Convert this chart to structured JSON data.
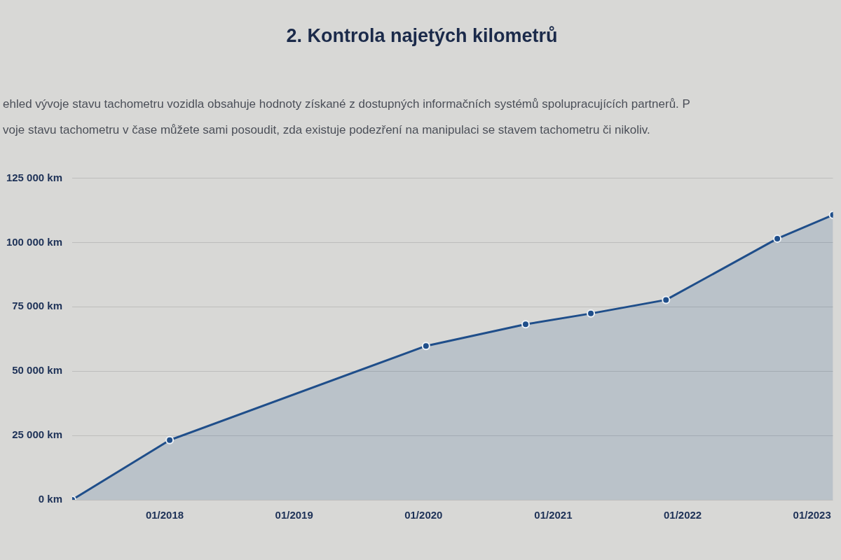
{
  "chart_data": {
    "type": "area",
    "title": "2. Kontrola najetých kilometrů",
    "subtitle": "ehled vývoje stavu tachometru vozidla obsahuje hodnoty získané z dostupných informačních systémů spolupracujících partnerů. P\nvoje stavu tachometru v čase můžete sami posoudit, zda existuje podezření na manipulaci se stavem tachometru či nikoliv.",
    "x": [
      "2017-04-15",
      "2018-01-15",
      "2020-01-08",
      "2020-10-15",
      "2021-04-17",
      "2021-11-15",
      "2022-09-25",
      "2023-03-01"
    ],
    "values": [
      0,
      23200,
      59800,
      68200,
      72400,
      77700,
      101500,
      110700
    ],
    "color": "#1f4e8a",
    "marker": "circle",
    "line_style": "solid",
    "grid": "y",
    "xlim": [
      "2017-04-15",
      "2023-03-01"
    ],
    "xticks": [
      {
        "value": "2018-01",
        "label": "01/2018"
      },
      {
        "value": "2019-01",
        "label": "01/2019"
      },
      {
        "value": "2020-01",
        "label": "01/2020"
      },
      {
        "value": "2021-01",
        "label": "01/2021"
      },
      {
        "value": "2022-01",
        "label": "01/2022"
      },
      {
        "value": "2023-01",
        "label": "01/2023"
      }
    ],
    "ylim": [
      0,
      125000
    ],
    "yticks": [
      {
        "value": 0,
        "label": "0 km"
      },
      {
        "value": 25000,
        "label": "25 000 km"
      },
      {
        "value": 50000,
        "label": "50 000 km"
      },
      {
        "value": 75000,
        "label": "75 000 km"
      },
      {
        "value": 100000,
        "label": "100 000 km"
      },
      {
        "value": 125000,
        "label": "125 000 km"
      }
    ]
  }
}
